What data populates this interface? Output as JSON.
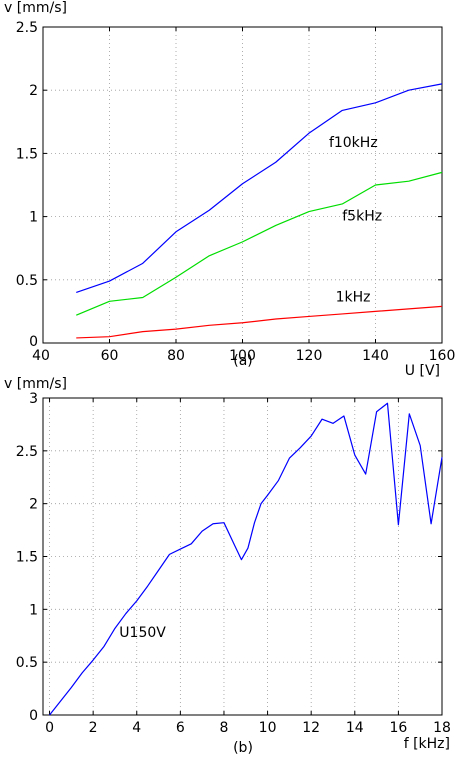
{
  "chart_data": [
    {
      "type": "line",
      "panel_label": "(a)",
      "xlabel": "U [V]",
      "ylabel": "v [mm/s]",
      "xlim": [
        40,
        160
      ],
      "ylim": [
        0,
        2.5
      ],
      "xticks": [
        40,
        60,
        80,
        100,
        120,
        140,
        160
      ],
      "yticks": [
        0,
        0.5,
        1,
        1.5,
        2,
        2.5
      ],
      "x_tick_labels": [
        "40",
        "60",
        "80",
        "100",
        "120",
        "140",
        "160"
      ],
      "y_tick_labels": [
        "0",
        "0.5",
        "1",
        "1.5",
        "2",
        "2.5"
      ],
      "grid": true,
      "x": [
        50,
        60,
        70,
        80,
        90,
        100,
        110,
        120,
        130,
        140,
        150,
        160
      ],
      "series": [
        {
          "label": "f10kHz",
          "color": "#0000ff",
          "values": [
            0.4,
            0.49,
            0.63,
            0.88,
            1.05,
            1.26,
            1.43,
            1.66,
            1.84,
            1.9,
            2.0,
            2.05
          ],
          "label_at": [
            126,
            1.55
          ]
        },
        {
          "label": "f5kHz",
          "color": "#00dd00",
          "values": [
            0.22,
            0.33,
            0.36,
            0.52,
            0.69,
            0.8,
            0.93,
            1.04,
            1.1,
            1.25,
            1.28,
            1.35
          ],
          "label_at": [
            130,
            0.97
          ]
        },
        {
          "label": "1kHz",
          "color": "#ff0000",
          "values": [
            0.04,
            0.05,
            0.09,
            0.11,
            0.14,
            0.16,
            0.19,
            0.21,
            0.23,
            0.25,
            0.27,
            0.29
          ],
          "label_at": [
            128,
            0.33
          ]
        }
      ]
    },
    {
      "type": "line",
      "panel_label": "(b)",
      "xlabel": "f [kHz]",
      "ylabel": "v [mm/s]",
      "xlim": [
        -0.3,
        18
      ],
      "ylim": [
        0,
        3
      ],
      "xticks": [
        0,
        2,
        4,
        6,
        8,
        10,
        12,
        14,
        16,
        18
      ],
      "yticks": [
        0,
        0.5,
        1,
        1.5,
        2,
        2.5,
        3
      ],
      "x_tick_labels": [
        "0",
        "2",
        "4",
        "6",
        "8",
        "10",
        "12",
        "14",
        "16",
        "18"
      ],
      "y_tick_labels": [
        "0",
        "0.5",
        "1",
        "1.5",
        "2",
        "2.5",
        "3"
      ],
      "grid": true,
      "series": [
        {
          "label": "U150V",
          "color": "#0000ff",
          "label_at": [
            3.2,
            0.74
          ],
          "x": [
            0,
            0.5,
            1,
            1.5,
            2,
            2.5,
            3,
            3.5,
            4,
            4.5,
            5,
            5.5,
            6,
            6.5,
            7,
            7.5,
            8,
            8.5,
            8.8,
            9.1,
            9.4,
            9.7,
            10,
            10.5,
            11,
            11.5,
            12,
            12.5,
            13,
            13.5,
            14,
            14.5,
            15,
            15.5,
            16,
            16.5,
            17,
            17.5,
            18
          ],
          "values": [
            0,
            0.13,
            0.26,
            0.4,
            0.52,
            0.65,
            0.82,
            0.96,
            1.08,
            1.22,
            1.37,
            1.52,
            1.57,
            1.62,
            1.74,
            1.81,
            1.82,
            1.6,
            1.47,
            1.58,
            1.82,
            2.0,
            2.08,
            2.22,
            2.43,
            2.53,
            2.64,
            2.8,
            2.76,
            2.83,
            2.46,
            2.28,
            2.87,
            2.95,
            1.8,
            2.85,
            2.55,
            1.81,
            2.44
          ]
        }
      ]
    }
  ]
}
